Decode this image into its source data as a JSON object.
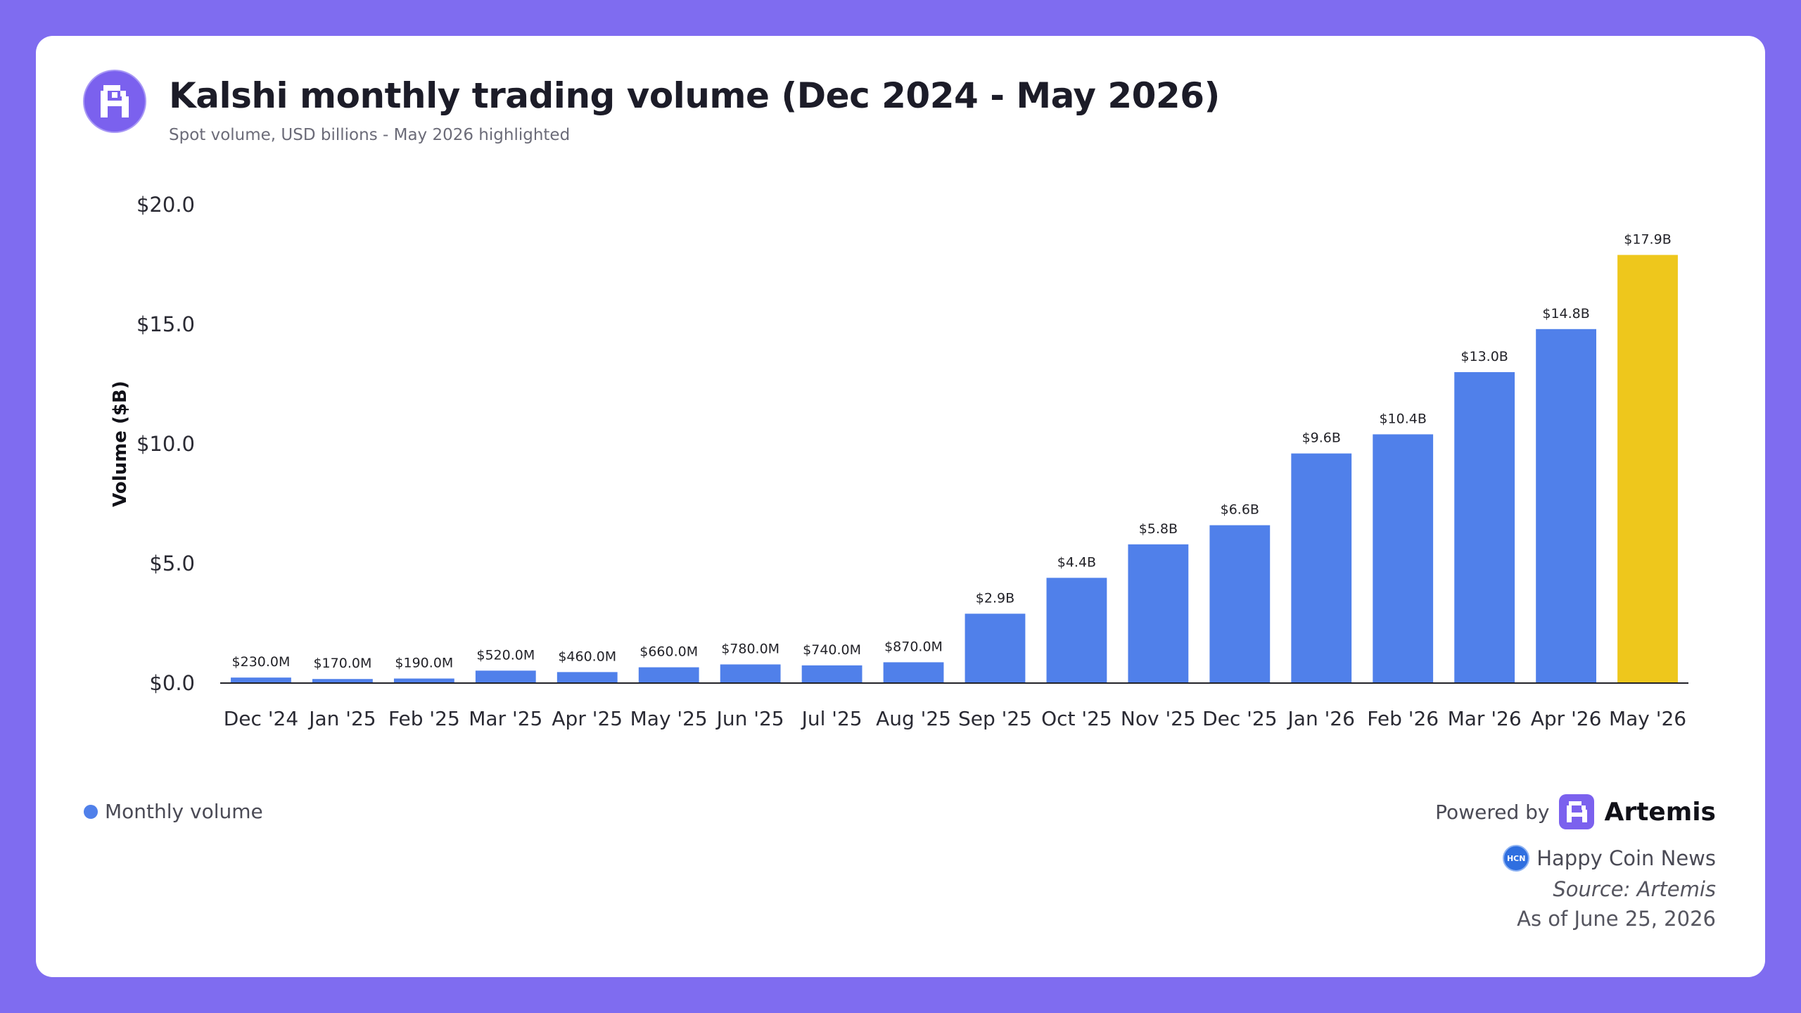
{
  "header": {
    "title": "Kalshi monthly trading volume (Dec 2024 - May 2026)",
    "subtitle": "Spot volume, USD billions - May 2026 highlighted"
  },
  "colors": {
    "background": "#7f6cf0",
    "bar": "#5080ea",
    "highlight": "#eec71c",
    "logo": "#7b61ee"
  },
  "chart_data": {
    "type": "bar",
    "ylabel": "Volume ($B)",
    "ylim": [
      0,
      20
    ],
    "yticks": [
      {
        "value": 0,
        "label": "$0.0"
      },
      {
        "value": 5,
        "label": "$5.0"
      },
      {
        "value": 10,
        "label": "$10.0"
      },
      {
        "value": 15,
        "label": "$15.0"
      },
      {
        "value": 20,
        "label": "$20.0"
      }
    ],
    "grid": false,
    "categories": [
      "Dec '24",
      "Jan '25",
      "Feb '25",
      "Mar '25",
      "Apr '25",
      "May '25",
      "Jun '25",
      "Jul '25",
      "Aug '25",
      "Sep '25",
      "Oct '25",
      "Nov '25",
      "Dec '25",
      "Jan '26",
      "Feb '26",
      "Mar '26",
      "Apr '26",
      "May '26"
    ],
    "values": [
      0.23,
      0.17,
      0.19,
      0.52,
      0.46,
      0.66,
      0.78,
      0.74,
      0.87,
      2.9,
      4.4,
      5.8,
      6.6,
      9.6,
      10.4,
      13.0,
      14.8,
      17.9
    ],
    "labels": [
      "$230.0M",
      "$170.0M",
      "$190.0M",
      "$520.0M",
      "$460.0M",
      "$660.0M",
      "$780.0M",
      "$740.0M",
      "$870.0M",
      "$2.9B",
      "$4.4B",
      "$5.8B",
      "$6.6B",
      "$9.6B",
      "$10.4B",
      "$13.0B",
      "$14.8B",
      "$17.9B"
    ],
    "highlight_index": 17,
    "series": [
      {
        "name": "Monthly volume"
      }
    ],
    "legend": "bottom-left"
  },
  "footer": {
    "legend_label": "Monthly volume",
    "powered_by": "Powered by",
    "brand": "Artemis",
    "publisher_badge": "HCN",
    "publisher": "Happy Coin News",
    "source": "Source: Artemis",
    "as_of": "As of June 25, 2026"
  }
}
